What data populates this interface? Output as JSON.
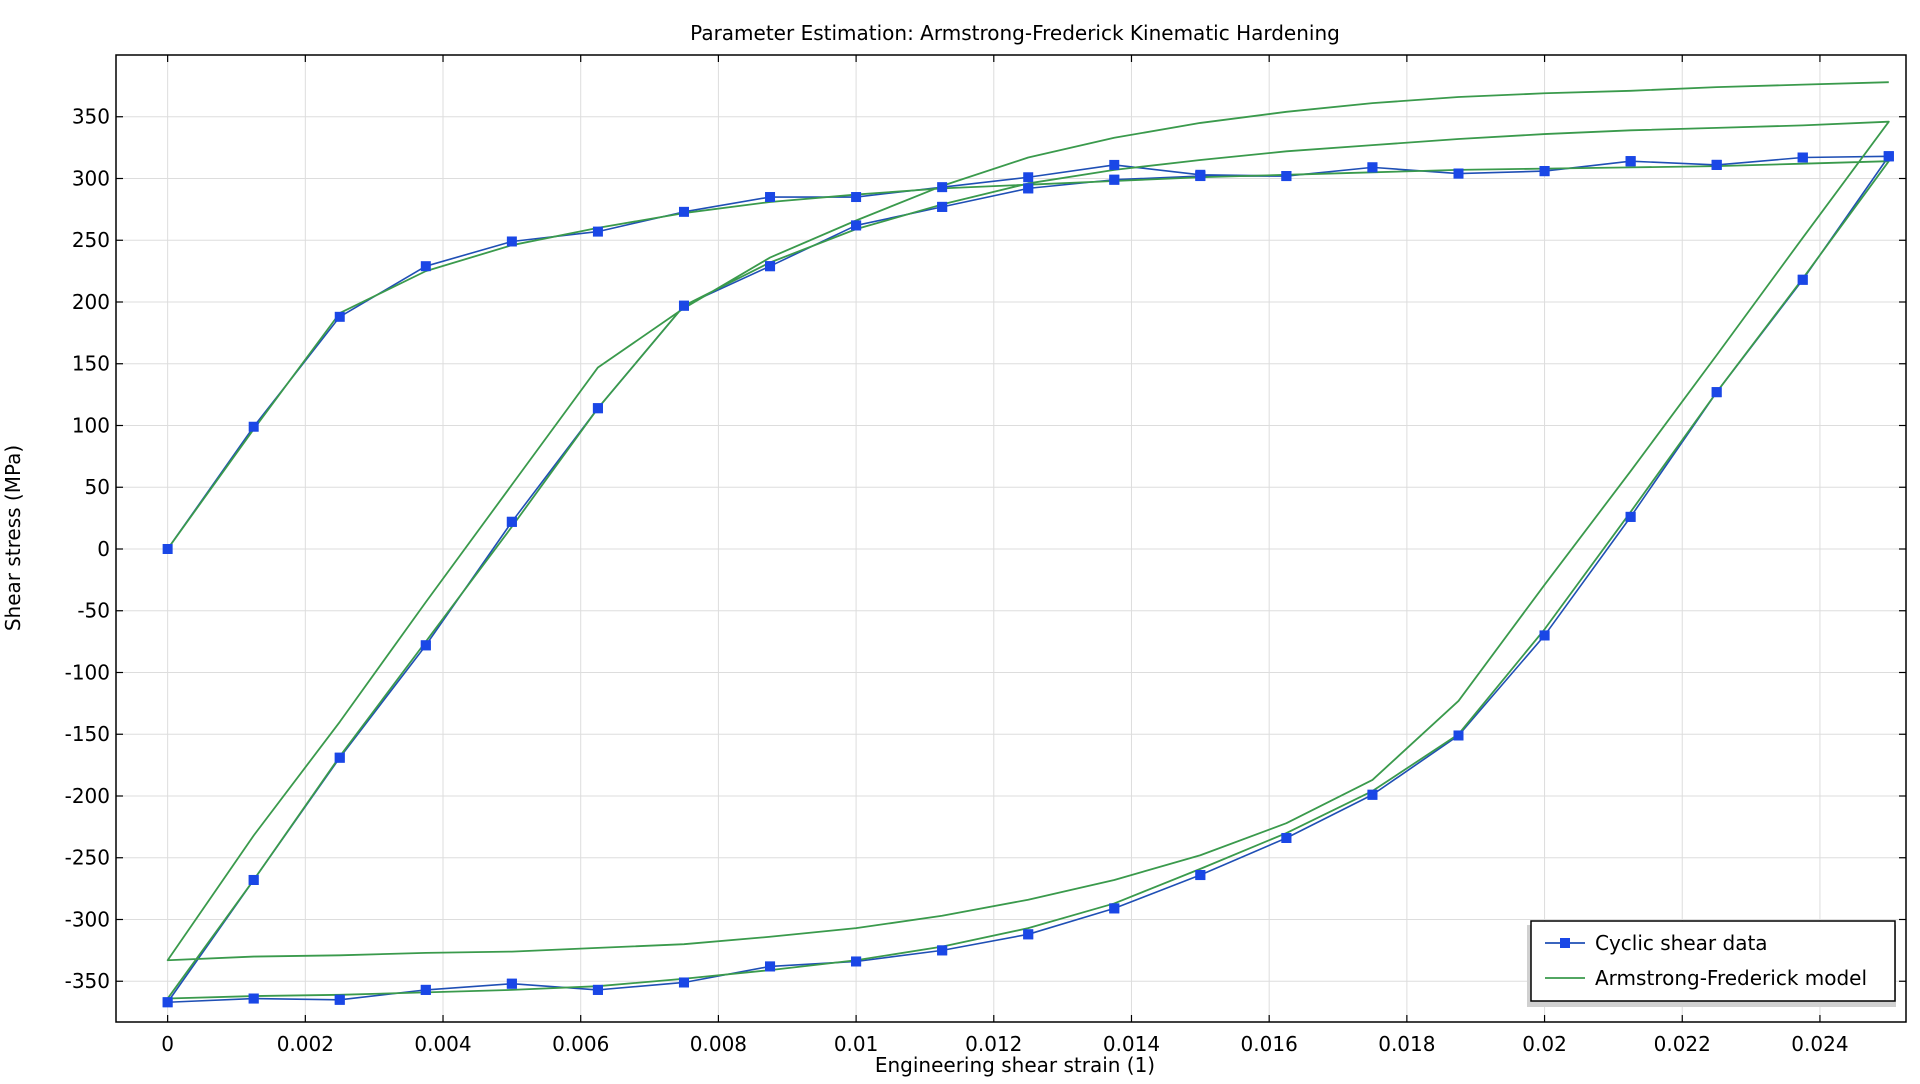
{
  "chart_data": {
    "type": "line",
    "title": "Parameter Estimation: Armstrong-Frederick Kinematic Hardening",
    "xlabel": "Engineering shear strain (1)",
    "ylabel": "Shear stress (MPa)",
    "xlim": [
      -0.00075,
      0.02525
    ],
    "ylim": [
      -383,
      400
    ],
    "xticks": [
      0,
      0.002,
      0.004,
      0.006,
      0.008,
      0.01,
      0.012,
      0.014,
      0.016,
      0.018,
      0.02,
      0.022,
      0.024
    ],
    "xtick_labels": [
      "0",
      "0.002",
      "0.004",
      "0.006",
      "0.008",
      "0.01",
      "0.012",
      "0.014",
      "0.016",
      "0.018",
      "0.02",
      "0.022",
      "0.024"
    ],
    "yticks": [
      -350,
      -300,
      -250,
      -200,
      -150,
      -100,
      -50,
      0,
      50,
      100,
      150,
      200,
      250,
      300,
      350
    ],
    "ytick_labels": [
      "-350",
      "-300",
      "-250",
      "-200",
      "-150",
      "-100",
      "-50",
      "0",
      "50",
      "100",
      "150",
      "200",
      "250",
      "300",
      "350"
    ],
    "grid": true,
    "legend_position": "bottom-right",
    "colors": {
      "data": "#1f4fb5",
      "marker": "#1a47e6",
      "model": "#3a9a4c",
      "grid": "#dddddd",
      "axis": "#000000"
    },
    "series": [
      {
        "name": "Cyclic shear data",
        "style": "line-square-markers",
        "x": [
          0,
          0.00125,
          0.0025,
          0.00375,
          0.005,
          0.00625,
          0.0075,
          0.00875,
          0.01,
          0.01125,
          0.0125,
          0.01375,
          0.015,
          0.01625,
          0.0175,
          0.01875,
          0.02,
          0.02125,
          0.0225,
          0.02375,
          0.025,
          0.02375,
          0.0225,
          0.02125,
          0.02,
          0.01875,
          0.0175,
          0.01625,
          0.015,
          0.01375,
          0.0125,
          0.01125,
          0.01,
          0.00875,
          0.0075,
          0.00625,
          0.005,
          0.00375,
          0.0025,
          0.00125,
          0,
          0.00125,
          0.0025,
          0.00375,
          0.005,
          0.00625,
          0.0075,
          0.00875,
          0.01,
          0.01125,
          0.0125,
          0.01375,
          0.015,
          0.01625,
          0.0175,
          0.01875,
          0.02,
          0.02125,
          0.0225,
          0.02375,
          0.025,
          0.02375,
          0.0225,
          0.02125,
          0.02,
          0.01875,
          0.0175,
          0.01625,
          0.015,
          0.01375,
          0.0125,
          0.01125,
          0.01,
          0.00875,
          0.0075,
          0.00625,
          0.005,
          0.00375,
          0.0025,
          0.00125,
          0,
          0.00125,
          0.0025,
          0.00375,
          0.005,
          0.00625,
          0.0075,
          0.00875,
          0.01,
          0.01125,
          0.0125,
          0.01375,
          0.015,
          0.01625,
          0.0175,
          0.01875,
          0.02,
          0.02125,
          0.0225,
          0.02375,
          0.025
        ],
        "y": [
          0,
          99,
          188,
          229,
          249,
          257,
          273,
          285,
          285,
          293,
          301,
          311,
          303,
          302,
          309,
          304,
          306,
          314,
          311,
          317,
          318,
          218,
          127,
          26,
          -70,
          -151,
          -199,
          -234,
          -264,
          -291,
          -312,
          -325,
          -334,
          -338,
          -351,
          -357,
          -352,
          -357,
          -365,
          -364,
          -367,
          -268,
          -169,
          -78,
          22,
          114,
          197,
          229,
          262,
          277,
          292,
          299,
          302,
          302,
          309,
          304,
          306,
          314,
          311,
          317,
          318,
          218,
          127,
          26,
          -70,
          -151,
          -199,
          -234,
          -264,
          -291,
          -312,
          -325,
          -334,
          -338,
          -351,
          -357,
          -352,
          -357,
          -365,
          -364,
          -367,
          -268,
          -169,
          -78,
          22,
          114,
          197,
          229,
          262,
          277,
          292,
          299,
          302,
          302,
          309,
          304,
          306,
          314,
          311,
          317,
          318
        ]
      },
      {
        "name": "Armstrong-Frederick model",
        "style": "line",
        "x": [
          0,
          0.00125,
          0.0025,
          0.00375,
          0.005,
          0.00625,
          0.0075,
          0.00875,
          0.01,
          0.01125,
          0.0125,
          0.01375,
          0.015,
          0.01625,
          0.0175,
          0.01875,
          0.02,
          0.02125,
          0.0225,
          0.02375,
          0.025,
          0.02375,
          0.0225,
          0.02125,
          0.02,
          0.01875,
          0.0175,
          0.01625,
          0.015,
          0.01375,
          0.0125,
          0.01125,
          0.01,
          0.00875,
          0.0075,
          0.00625,
          0.005,
          0.00375,
          0.0025,
          0.00125,
          0,
          0.00125,
          0.0025,
          0.00375,
          0.005,
          0.00625,
          0.0075,
          0.00875,
          0.01,
          0.01125,
          0.0125,
          0.01375,
          0.015,
          0.01625,
          0.0175,
          0.01875,
          0.02,
          0.02125,
          0.0225,
          0.02375,
          0.025,
          0.02375,
          0.0225,
          0.02125,
          0.02,
          0.01875,
          0.0175,
          0.01625,
          0.015,
          0.01375,
          0.0125,
          0.01125,
          0.01,
          0.00875,
          0.0075,
          0.00625,
          0.005,
          0.00375,
          0.0025,
          0.00125,
          0,
          0.00125,
          0.0025,
          0.00375,
          0.005,
          0.00625,
          0.0075,
          0.00875,
          0.01,
          0.01125,
          0.0125,
          0.01375,
          0.015,
          0.01625,
          0.0175,
          0.01875,
          0.02,
          0.02125,
          0.0225,
          0.02375,
          0.025
        ],
        "y": [
          0,
          97,
          191,
          225,
          246,
          260,
          272,
          281,
          287,
          292,
          295,
          298,
          301,
          303,
          305,
          307,
          308,
          309,
          310,
          312,
          314,
          219,
          127,
          30,
          -65,
          -150,
          -196,
          -230,
          -259,
          -287,
          -307,
          -322,
          -333,
          -341,
          -348,
          -354,
          -357,
          -359,
          -361,
          -362,
          -364,
          -268,
          -168,
          -75,
          18,
          114,
          197,
          232,
          259,
          279,
          296,
          307,
          315,
          322,
          327,
          332,
          336,
          339,
          341,
          343,
          346,
          252,
          157,
          63,
          -29,
          -123,
          -187,
          -222,
          -248,
          -268,
          -284,
          -297,
          -307,
          -314,
          -320,
          -323,
          -326,
          -327,
          -329,
          -330,
          -333,
          -232,
          -140,
          -43,
          52,
          147,
          195,
          236,
          266,
          294,
          317,
          333,
          345,
          354,
          361,
          366,
          369,
          371,
          374,
          376,
          378
        ]
      }
    ]
  }
}
